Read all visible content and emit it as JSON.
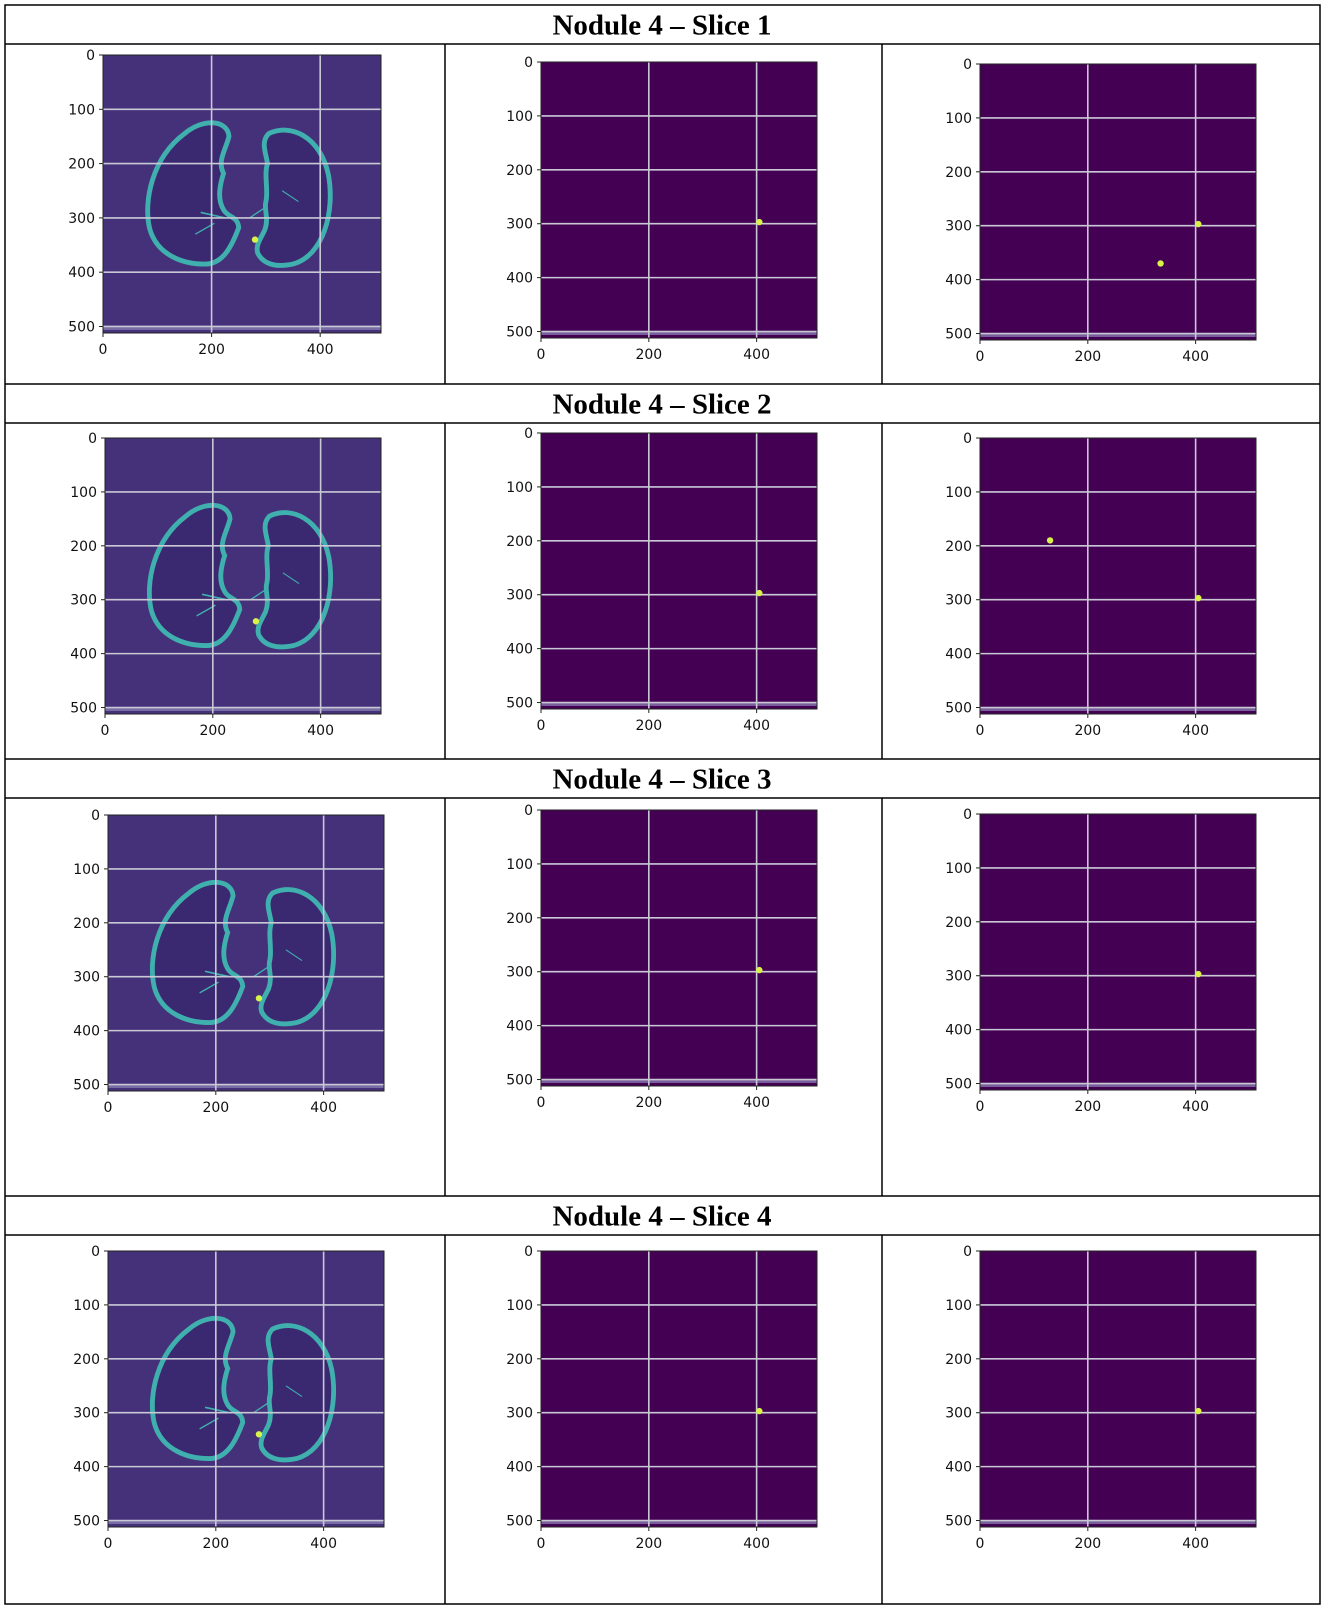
{
  "rows": [
    {
      "title": "Nodule 4 – Slice 1",
      "panels": [
        {
          "kind": "ct",
          "nodules": [
            [
              280,
              340
            ]
          ]
        },
        {
          "kind": "mask",
          "nodules": [
            [
              405,
              297
            ]
          ]
        },
        {
          "kind": "mask",
          "nodules": [
            [
              405,
              297
            ],
            [
              335,
              370
            ]
          ]
        }
      ]
    },
    {
      "title": "Nodule 4 – Slice 2",
      "panels": [
        {
          "kind": "ct",
          "nodules": [
            [
              280,
              340
            ]
          ]
        },
        {
          "kind": "mask",
          "nodules": [
            [
              405,
              297
            ]
          ]
        },
        {
          "kind": "mask",
          "nodules": [
            [
              405,
              297
            ],
            [
              130,
              190
            ]
          ]
        }
      ]
    },
    {
      "title": "Nodule 4 – Slice 3",
      "panels": [
        {
          "kind": "ct",
          "nodules": [
            [
              280,
              340
            ]
          ]
        },
        {
          "kind": "mask",
          "nodules": [
            [
              405,
              297
            ]
          ]
        },
        {
          "kind": "mask",
          "nodules": [
            [
              405,
              297
            ]
          ]
        }
      ]
    },
    {
      "title": "Nodule 4 – Slice 4",
      "panels": [
        {
          "kind": "ct",
          "nodules": [
            [
              280,
              340
            ]
          ]
        },
        {
          "kind": "mask",
          "nodules": [
            [
              405,
              297
            ]
          ]
        },
        {
          "kind": "mask",
          "nodules": [
            [
              405,
              297
            ]
          ]
        }
      ]
    }
  ],
  "axes": {
    "x_ticks": [
      "0",
      "200",
      "400"
    ],
    "y_ticks": [
      "0",
      "100",
      "200",
      "300",
      "400",
      "500"
    ],
    "x_values": [
      0,
      200,
      400
    ],
    "y_values": [
      0,
      100,
      200,
      300,
      400,
      500
    ],
    "range": [
      0,
      512
    ]
  },
  "colors": {
    "ct_background": "#45307a",
    "mask_background": "#440154",
    "lung_outline": "#3fb0ae",
    "lung_interior": "#3a2870",
    "nodule": "#d8f24a"
  }
}
